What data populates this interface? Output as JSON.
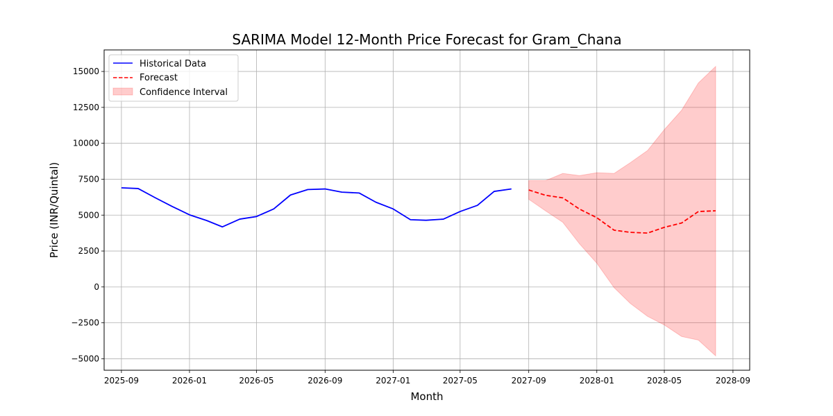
{
  "chart_data": {
    "type": "line",
    "title": "SARIMA Model 12-Month Price Forecast for Gram_Chana",
    "xlabel": "Month",
    "ylabel": "Price (INR/Quintal)",
    "xlim": [
      "2025-08-01",
      "2028-10-01"
    ],
    "ylim": [
      -5800,
      16500
    ],
    "x_ticks": [
      "2025-09",
      "2026-01",
      "2026-05",
      "2026-09",
      "2027-01",
      "2027-05",
      "2027-09",
      "2028-01",
      "2028-05",
      "2028-09"
    ],
    "y_ticks": [
      -5000,
      -2500,
      0,
      2500,
      5000,
      7500,
      10000,
      12500,
      15000
    ],
    "grid": true,
    "legend_position": "top-left",
    "colors": {
      "historical": "#0000ff",
      "forecast": "#ff0000",
      "confidence": "#ff0000"
    },
    "series": [
      {
        "name": "Historical Data",
        "style": "solid",
        "x": [
          "2025-09",
          "2025-10",
          "2025-11",
          "2025-12",
          "2026-01",
          "2026-02",
          "2026-03",
          "2026-04",
          "2026-05",
          "2026-06",
          "2026-07",
          "2026-08",
          "2026-09",
          "2026-10",
          "2026-11",
          "2026-12",
          "2027-01",
          "2027-02",
          "2027-03",
          "2027-04",
          "2027-05",
          "2027-06",
          "2027-07",
          "2027-08"
        ],
        "values": [
          6900,
          6850,
          6200,
          5600,
          5020,
          4620,
          4180,
          4720,
          4900,
          5430,
          6400,
          6780,
          6820,
          6600,
          6540,
          5900,
          5430,
          4680,
          4640,
          4720,
          5250,
          5680,
          6650,
          6820
        ]
      },
      {
        "name": "Forecast",
        "style": "dashed",
        "x": [
          "2027-09",
          "2027-10",
          "2027-11",
          "2027-12",
          "2028-01",
          "2028-02",
          "2028-03",
          "2028-04",
          "2028-05",
          "2028-06",
          "2028-07",
          "2028-08"
        ],
        "values": [
          6750,
          6380,
          6200,
          5420,
          4820,
          3950,
          3800,
          3750,
          4150,
          4450,
          5250,
          5300
        ]
      }
    ],
    "confidence_interval": {
      "name": "Confidence Interval",
      "x": [
        "2027-09",
        "2027-10",
        "2027-11",
        "2027-12",
        "2028-01",
        "2028-02",
        "2028-03",
        "2028-04",
        "2028-05",
        "2028-06",
        "2028-07",
        "2028-08"
      ],
      "lower": [
        6100,
        5300,
        4500,
        3000,
        1650,
        -50,
        -1150,
        -2050,
        -2650,
        -3450,
        -3700,
        -4800
      ],
      "upper": [
        7400,
        7400,
        7900,
        7750,
        7950,
        7900,
        8650,
        9500,
        10950,
        12300,
        14200,
        15350
      ]
    }
  }
}
